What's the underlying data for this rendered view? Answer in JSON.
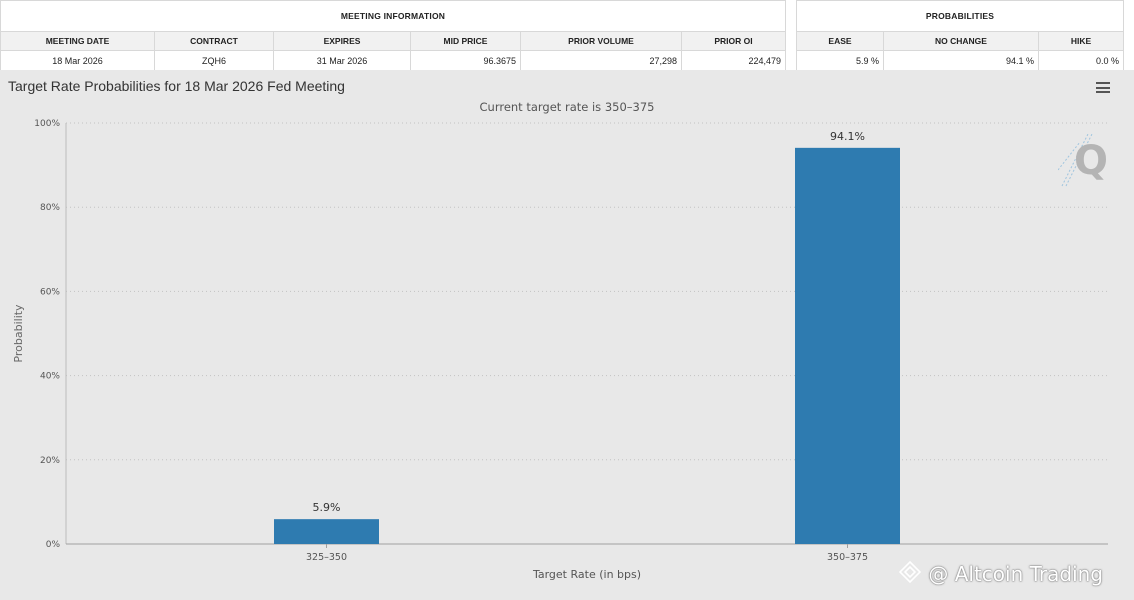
{
  "meeting_info": {
    "group_title": "MEETING INFORMATION",
    "headers": [
      "MEETING DATE",
      "CONTRACT",
      "EXPIRES",
      "MID PRICE",
      "PRIOR VOLUME",
      "PRIOR OI"
    ],
    "values": [
      "18 Mar 2026",
      "ZQH6",
      "31 Mar 2026",
      "96.3675",
      "27,298",
      "224,479"
    ]
  },
  "probabilities": {
    "group_title": "PROBABILITIES",
    "headers": [
      "EASE",
      "NO CHANGE",
      "HIKE"
    ],
    "values": [
      "5.9 %",
      "94.1 %",
      "0.0 %"
    ]
  },
  "chart_data": {
    "type": "bar",
    "title": "Target Rate Probabilities for 18 Mar 2026 Fed Meeting",
    "subtitle": "Current target rate is 350–375",
    "xlabel": "Target Rate (in bps)",
    "ylabel": "Probability",
    "categories": [
      "325–350",
      "350–375"
    ],
    "values": [
      5.9,
      94.1
    ],
    "data_labels": [
      "5.9%",
      "94.1%"
    ],
    "yticks": [
      0,
      20,
      40,
      60,
      80,
      100
    ],
    "ytick_labels": [
      "0%",
      "20%",
      "40%",
      "60%",
      "80%",
      "100%"
    ],
    "ylim": [
      0,
      100
    ],
    "grid": true,
    "legend": "none",
    "bar_color": "#2e7bb0"
  },
  "watermark": "@ Altcoin Trading",
  "icons": {
    "menu": "hamburger-menu-icon",
    "logo": "q-logo-icon",
    "brand": "binance-diamond-icon"
  }
}
